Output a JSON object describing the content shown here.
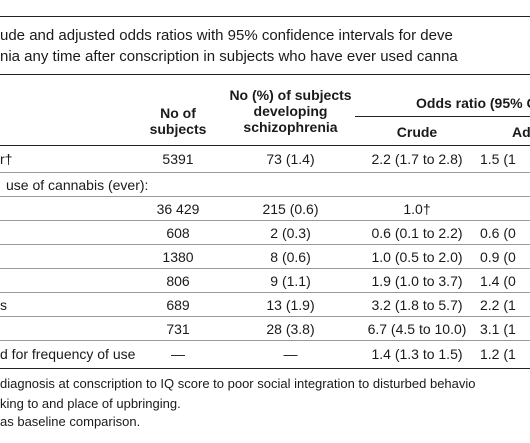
{
  "caption": {
    "line1": "ude and adjusted odds ratios with 95% confidence intervals for deve",
    "line2": "nia any time after conscription in subjects who have ever used canna"
  },
  "headers": {
    "no_subjects": "No of subjects",
    "no_developing": "No (%) of subjects developing schizophrenia",
    "odds_ratio": "Odds ratio (95% C",
    "crude": "Crude",
    "adjusted": "Ad"
  },
  "rows": [
    {
      "label": "r†",
      "n": "5391",
      "dev": "73 (1.4)",
      "crude": "2.2 (1.7 to 2.8)",
      "adj": "1.5 (1"
    },
    {
      "label": "use of cannabis (ever):",
      "n": "",
      "dev": "",
      "crude": "",
      "adj": ""
    },
    {
      "label": "",
      "n": "36 429",
      "dev": "215 (0.6)",
      "crude": "1.0†",
      "adj": ""
    },
    {
      "label": "",
      "n": "608",
      "dev": "2 (0.3)",
      "crude": "0.6 (0.1 to 2.2)",
      "adj": "0.6 (0"
    },
    {
      "label": "",
      "n": "1380",
      "dev": "8 (0.6)",
      "crude": "1.0 (0.5 to 2.0)",
      "adj": "0.9 (0"
    },
    {
      "label": "",
      "n": "806",
      "dev": "9 (1.1)",
      "crude": "1.9 (1.0 to 3.7)",
      "adj": "1.4 (0"
    },
    {
      "label": "s",
      "n": "689",
      "dev": "13 (1.9)",
      "crude": "3.2 (1.8 to 5.7)",
      "adj": "2.2 (1"
    },
    {
      "label": "",
      "n": "731",
      "dev": "28 (3.8)",
      "crude": "6.7 (4.5 to 10.0)",
      "adj": "3.1 (1"
    },
    {
      "label": "d for frequency of use",
      "n": "—",
      "dev": "—",
      "crude": "1.4 (1.3 to 1.5)",
      "adj": "1.2 (1"
    }
  ],
  "footnotes": {
    "line1": "diagnosis at conscription to IQ score to poor social integration to disturbed behavio",
    "line2": "king to and place of upbringing.",
    "line3": "as baseline comparison."
  }
}
